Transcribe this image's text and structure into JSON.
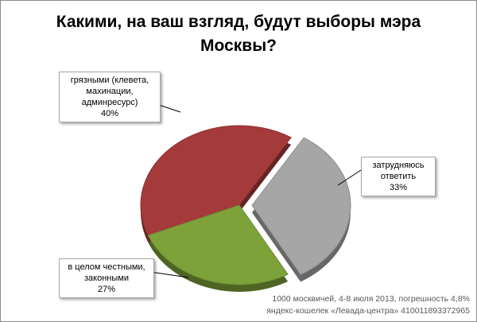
{
  "chart_data": {
    "type": "pie",
    "title": "Какими, на ваш взгляд, будут выборы мэра Москвы?",
    "title_lines": [
      "Какими, на ваш взгляд, будут выборы мэра",
      "Москвы?"
    ],
    "slices": [
      {
        "label": "грязными (клевета, махинации, админресурс)",
        "label_lines": [
          "грязными (клевета,",
          "махинации,",
          "админресурс)"
        ],
        "value": 40,
        "value_label": "40%",
        "color": "#a53a3a",
        "exploded": false
      },
      {
        "label": "затрудняюсь ответить",
        "label_lines": [
          "затрудняюсь",
          "ответить"
        ],
        "value": 33,
        "value_label": "33%",
        "color": "#a6a6a6",
        "exploded": true
      },
      {
        "label": "в целом честными, законными",
        "label_lines": [
          "в целом честными,",
          "законными"
        ],
        "value": 27,
        "value_label": "27%",
        "color": "#7da23a",
        "exploded": false
      }
    ],
    "note_lines": [
      "1000 москвичей, 4-8 июля 2013, погрешность 4,8%",
      "яндекс-кошелек «Левада-центра» 410011893372965"
    ]
  }
}
